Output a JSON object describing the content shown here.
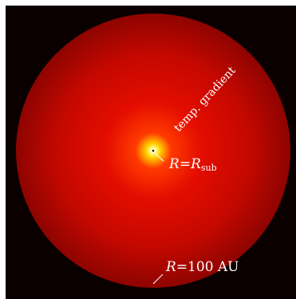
{
  "colors": {
    "background": "#0a0000",
    "core": "#ffffff",
    "hot": "#ffd400",
    "warm": "#ff2a00",
    "cloud": "#cf0b00",
    "edge": "#8a0400",
    "label": "#ffffff"
  },
  "labels": {
    "gradient": "temp. gradient",
    "inner_R": "R",
    "inner_eq": "=",
    "inner_Rsub_base": "R",
    "inner_Rsub_subscript": "sub",
    "outer_R": "R",
    "outer_value": "=100 AU"
  }
}
